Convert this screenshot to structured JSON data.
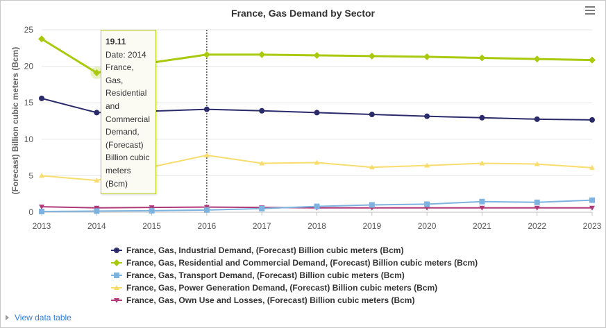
{
  "title": "France, Gas Demand by Sector",
  "menu_icon": "hamburger-menu-icon",
  "view_data_table": "View data table",
  "chart_data": {
    "type": "line",
    "title": "France, Gas Demand by Sector",
    "xlabel": "",
    "ylabel": "(Forecast) Billion cubic meters (Bcm)",
    "x": [
      "2013",
      "2014",
      "2015",
      "2016",
      "2017",
      "2018",
      "2019",
      "2020",
      "2021",
      "2022",
      "2023"
    ],
    "ylim": [
      0,
      25
    ],
    "yticks": [
      "0",
      "5",
      "10",
      "15",
      "20",
      "25"
    ],
    "grid": true,
    "legend_position": "bottom",
    "series": [
      {
        "name": "France, Gas, Industrial Demand, (Forecast) Billion cubic meters (Bcm)",
        "color": "#2b2b6b",
        "marker": "circle",
        "values": [
          15.6,
          13.65,
          13.85,
          14.1,
          13.9,
          13.65,
          13.4,
          13.15,
          12.95,
          12.75,
          12.65
        ]
      },
      {
        "name": "France, Gas, Residential and Commercial Demand, (Forecast) Billion cubic meters (Bcm)",
        "color": "#a9c90e",
        "marker": "diamond",
        "values": [
          23.75,
          19.11,
          20.5,
          21.6,
          21.6,
          21.5,
          21.4,
          21.3,
          21.15,
          21.0,
          20.85
        ]
      },
      {
        "name": "France, Gas, Transport Demand, (Forecast) Billion cubic meters (Bcm)",
        "color": "#7eb3e0",
        "marker": "square",
        "values": [
          0.1,
          0.15,
          0.2,
          0.3,
          0.5,
          0.8,
          1.0,
          1.1,
          1.45,
          1.35,
          1.65
        ]
      },
      {
        "name": "France, Gas, Power Generation Demand, (Forecast) Billion cubic meters (Bcm)",
        "color": "#f9dc6e",
        "marker": "triangle",
        "values": [
          5.0,
          4.35,
          6.2,
          7.8,
          6.7,
          6.8,
          6.15,
          6.4,
          6.7,
          6.6,
          6.1
        ]
      },
      {
        "name": "France, Gas, Own Use and Losses, (Forecast) Billion cubic meters (Bcm)",
        "color": "#b03a78",
        "marker": "triangle-down",
        "values": [
          0.75,
          0.6,
          0.65,
          0.7,
          0.65,
          0.6,
          0.6,
          0.6,
          0.6,
          0.6,
          0.6
        ]
      }
    ],
    "crosshair_x": "2016",
    "tooltip": {
      "value": "19.11",
      "lines": [
        "Date: 2014",
        "France,",
        "Gas,",
        "Residential",
        "and",
        "Commercial",
        "Demand,",
        "(Forecast)",
        "Billion cubic",
        "meters",
        "(Bcm)"
      ]
    }
  }
}
